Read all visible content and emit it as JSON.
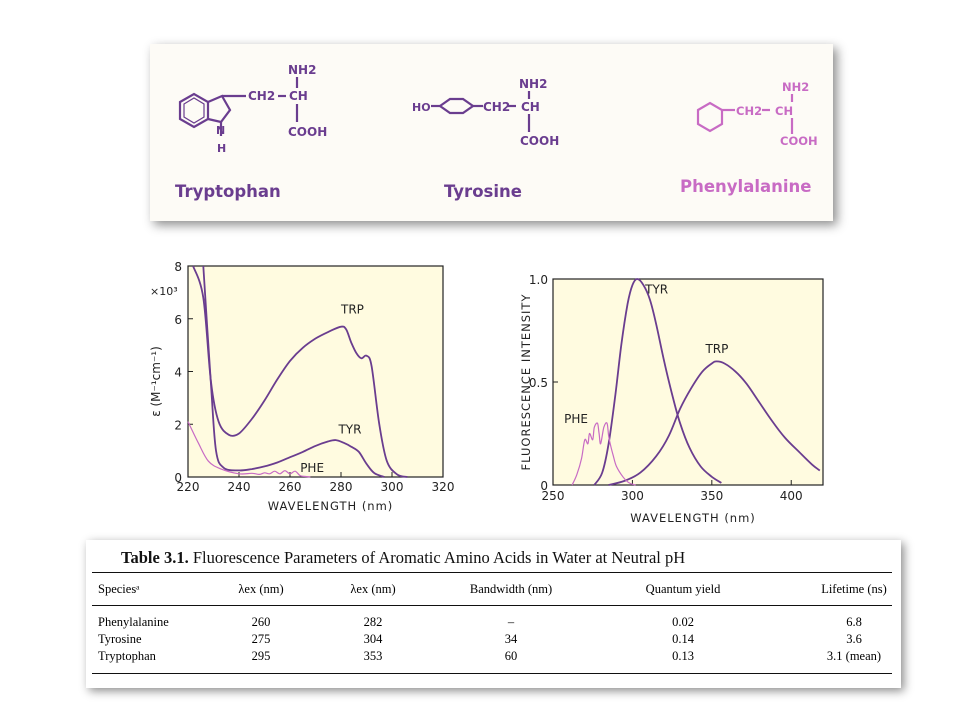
{
  "structures": {
    "trp": {
      "name": "Tryptophan",
      "nh2": "NH2",
      "ch2": "CH2",
      "ch": "CH",
      "cooh": "COOH",
      "nh": "N",
      "h": "H",
      "color": "#6a3d8f"
    },
    "tyr": {
      "name": "Tyrosine",
      "ho": "HO",
      "nh2": "NH2",
      "ch2": "CH2",
      "ch": "CH",
      "cooh": "COOH",
      "color": "#6a3d8f"
    },
    "phe": {
      "name": "Phenylalanine",
      "nh2": "NH2",
      "ch2": "CH2",
      "ch": "CH",
      "cooh": "COOH",
      "color": "#c86bc4"
    }
  },
  "chart_data": [
    {
      "type": "line",
      "xlabel": "WAVELENGTH (nm)",
      "ylabel": "ε (M⁻¹cm⁻¹)",
      "y_multiplier": "×10³",
      "xlim": [
        220,
        320
      ],
      "ylim": [
        0,
        8
      ],
      "xticks": [
        220,
        240,
        260,
        280,
        300,
        320
      ],
      "yticks": [
        0,
        2,
        4,
        6,
        8
      ],
      "series": [
        {
          "name": "TRP",
          "color": "#6a3d8f",
          "points": [
            [
              222,
              8
            ],
            [
              226,
              6.8
            ],
            [
              229,
              3.6
            ],
            [
              232,
              2.1
            ],
            [
              236,
              1.6
            ],
            [
              240,
              1.65
            ],
            [
              245,
              2.2
            ],
            [
              250,
              2.9
            ],
            [
              255,
              3.7
            ],
            [
              260,
              4.4
            ],
            [
              265,
              4.9
            ],
            [
              270,
              5.25
            ],
            [
              275,
              5.5
            ],
            [
              280,
              5.7
            ],
            [
              282,
              5.6
            ],
            [
              284,
              5.1
            ],
            [
              286,
              4.7
            ],
            [
              288,
              4.5
            ],
            [
              290,
              4.6
            ],
            [
              292,
              4.2
            ],
            [
              295,
              2.0
            ],
            [
              298,
              0.6
            ],
            [
              302,
              0.1
            ],
            [
              306,
              0
            ]
          ]
        },
        {
          "name": "TYR",
          "color": "#6a3d8f",
          "points": [
            [
              226,
              8
            ],
            [
              229,
              3.5
            ],
            [
              231,
              1.0
            ],
            [
              234,
              0.35
            ],
            [
              240,
              0.25
            ],
            [
              245,
              0.3
            ],
            [
              250,
              0.4
            ],
            [
              255,
              0.55
            ],
            [
              260,
              0.75
            ],
            [
              265,
              0.95
            ],
            [
              270,
              1.18
            ],
            [
              275,
              1.35
            ],
            [
              278,
              1.4
            ],
            [
              281,
              1.3
            ],
            [
              284,
              1.15
            ],
            [
              287,
              0.95
            ],
            [
              290,
              0.5
            ],
            [
              293,
              0.15
            ],
            [
              297,
              0
            ]
          ]
        },
        {
          "name": "PHE",
          "color": "#c86bc4",
          "points": [
            [
              220,
              2.1
            ],
            [
              224,
              1.3
            ],
            [
              228,
              0.6
            ],
            [
              233,
              0.3
            ],
            [
              240,
              0.12
            ],
            [
              245,
              0.14
            ],
            [
              248,
              0.1
            ],
            [
              250,
              0.16
            ],
            [
              252,
              0.12
            ],
            [
              254,
              0.22
            ],
            [
              256,
              0.12
            ],
            [
              258,
              0.24
            ],
            [
              260,
              0.12
            ],
            [
              262,
              0.22
            ],
            [
              264,
              0.05
            ],
            [
              266,
              0.02
            ],
            [
              268,
              0
            ]
          ]
        }
      ]
    },
    {
      "type": "line",
      "xlabel": "WAVELENGTH (nm)",
      "ylabel": "FLUORESCENCE INTENSITY",
      "xlim": [
        250,
        420
      ],
      "ylim": [
        0,
        1.0
      ],
      "xticks": [
        250,
        300,
        350,
        400
      ],
      "yticks": [
        0,
        0.5,
        1.0
      ],
      "ytick_labels": [
        "0",
        "0.5",
        "1.0"
      ],
      "series": [
        {
          "name": "TYR",
          "color": "#6a3d8f",
          "points": [
            [
              276,
              0
            ],
            [
              281,
              0.06
            ],
            [
              285,
              0.2
            ],
            [
              289,
              0.42
            ],
            [
              293,
              0.68
            ],
            [
              297,
              0.88
            ],
            [
              300,
              0.97
            ],
            [
              303,
              1.0
            ],
            [
              307,
              0.97
            ],
            [
              311,
              0.9
            ],
            [
              315,
              0.78
            ],
            [
              320,
              0.6
            ],
            [
              325,
              0.44
            ],
            [
              330,
              0.3
            ],
            [
              336,
              0.18
            ],
            [
              343,
              0.09
            ],
            [
              350,
              0.04
            ],
            [
              356,
              0.01
            ]
          ]
        },
        {
          "name": "TRP",
          "color": "#6a3d8f",
          "points": [
            [
              285,
              0
            ],
            [
              295,
              0.02
            ],
            [
              305,
              0.06
            ],
            [
              315,
              0.14
            ],
            [
              323,
              0.24
            ],
            [
              330,
              0.37
            ],
            [
              337,
              0.47
            ],
            [
              344,
              0.55
            ],
            [
              350,
              0.59
            ],
            [
              353,
              0.6
            ],
            [
              358,
              0.59
            ],
            [
              365,
              0.55
            ],
            [
              372,
              0.49
            ],
            [
              380,
              0.4
            ],
            [
              388,
              0.31
            ],
            [
              396,
              0.23
            ],
            [
              405,
              0.16
            ],
            [
              413,
              0.1
            ],
            [
              418,
              0.07
            ]
          ]
        },
        {
          "name": "PHE",
          "color": "#c86bc4",
          "points": [
            [
              262,
              0
            ],
            [
              265,
              0.05
            ],
            [
              268,
              0.13
            ],
            [
              270,
              0.22
            ],
            [
              272,
              0.2
            ],
            [
              273,
              0.25
            ],
            [
              275,
              0.22
            ],
            [
              276,
              0.28
            ],
            [
              278,
              0.3
            ],
            [
              279,
              0.25
            ],
            [
              280,
              0.2
            ],
            [
              282,
              0.28
            ],
            [
              284,
              0.3
            ],
            [
              285,
              0.24
            ],
            [
              286,
              0.2
            ],
            [
              288,
              0.14
            ],
            [
              290,
              0.09
            ],
            [
              294,
              0.04
            ],
            [
              298,
              0.01
            ],
            [
              302,
              0
            ]
          ]
        }
      ]
    }
  ],
  "table": {
    "label": "Table 3.1.",
    "title": "Fluorescence Parameters of Aromatic Amino Acids in Water at Neutral pH",
    "headers": [
      "Speciesᵃ",
      "λex (nm)",
      "λex (nm)",
      "Bandwidth (nm)",
      "Quantum yield",
      "Lifetime (ns)"
    ],
    "rows": [
      [
        "Phenylalanine",
        "260",
        "282",
        "–",
        "0.02",
        "6.8"
      ],
      [
        "Tyrosine",
        "275",
        "304",
        "34",
        "0.14",
        "3.6"
      ],
      [
        "Tryptophan",
        "295",
        "353",
        "60",
        "0.13",
        "3.1 (mean)"
      ]
    ]
  }
}
